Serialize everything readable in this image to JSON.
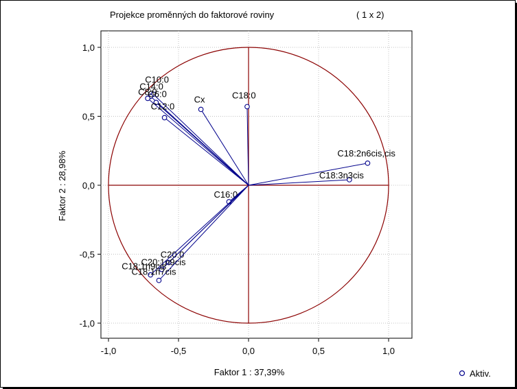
{
  "chart_data": {
    "type": "scatter",
    "title": "Projekce proměnných do faktorové roviny",
    "title_suffix": "( 1 x 2)",
    "xlabel": "Faktor 1 : 37,39%",
    "ylabel": "Faktor 2 : 28,98%",
    "xlim": [
      -1.0,
      1.0
    ],
    "ylim": [
      -1.0,
      1.0
    ],
    "x_ticks": [
      "-1,0",
      "-0,5",
      "0,0",
      "0,5",
      "1,0"
    ],
    "y_ticks": [
      "1,0",
      "0,5",
      "0,0",
      "-0,5",
      "-1,0"
    ],
    "x_tick_values": [
      -1.0,
      -0.5,
      0.0,
      0.5,
      1.0
    ],
    "y_tick_values": [
      1.0,
      0.5,
      0.0,
      -0.5,
      -1.0
    ],
    "grid": true,
    "unit_circle": true,
    "legend": {
      "label": "Aktiv.",
      "placement": "bottom-right"
    },
    "colors": {
      "vector": "#00008b",
      "circle": "#8b0000",
      "axes": "#8b0000",
      "grid": "#c0c0c0"
    },
    "points": [
      {
        "label": "C10:0",
        "x": -0.68,
        "y": 0.66
      },
      {
        "label": "C14:0",
        "x": -0.7,
        "y": 0.645
      },
      {
        "label": "C8:0",
        "x": -0.72,
        "y": 0.63
      },
      {
        "label": "C6:0",
        "x": -0.66,
        "y": 0.6
      },
      {
        "label": "C12:0",
        "x": -0.6,
        "y": 0.49
      },
      {
        "label": "Cx",
        "x": -0.34,
        "y": 0.55
      },
      {
        "label": "C18:0",
        "x": -0.01,
        "y": 0.57
      },
      {
        "label": "C18:2n6cis,cis",
        "x": 0.85,
        "y": 0.16
      },
      {
        "label": "C18:3n3cis",
        "x": 0.72,
        "y": 0.04
      },
      {
        "label": "C16:0",
        "x": -0.14,
        "y": -0.12
      },
      {
        "label": "C20:0",
        "x": -0.57,
        "y": -0.56
      },
      {
        "label": "C20:1n9cis",
        "x": -0.62,
        "y": -0.61
      },
      {
        "label": "C18:1n9cis",
        "x": -0.7,
        "y": -0.65
      },
      {
        "label": "C18:1n7cis",
        "x": -0.64,
        "y": -0.69
      }
    ]
  }
}
